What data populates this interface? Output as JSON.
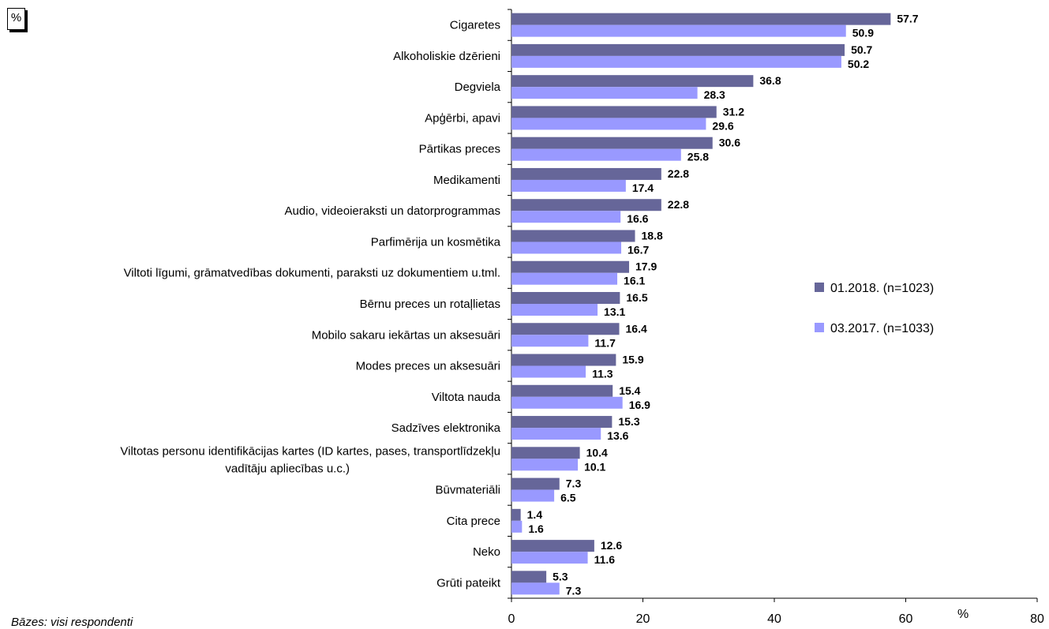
{
  "unit_box": "%",
  "footnote": "Bāzes: visi respondenti",
  "axis_unit": "%",
  "colors": {
    "series1": "#666699",
    "series2": "#9999ff"
  },
  "chart_data": {
    "type": "bar",
    "orientation": "horizontal",
    "categories": [
      "Cigaretes",
      "Alkoholiskie dzērieni",
      "Degviela",
      "Apģērbi, apavi",
      "Pārtikas preces",
      "Medikamenti",
      "Audio, videoieraksti un datorprogrammas",
      "Parfimērija un kosmētika",
      "Viltoti līgumi, grāmatvedības dokumenti, paraksti uz dokumentiem u.tml.",
      "Bērnu preces un rotaļlietas",
      "Mobilo sakaru iekārtas un aksesuāri",
      "Modes preces un aksesuāri",
      "Viltota nauda",
      "Sadzīves elektronika",
      "Viltotas personu identifikācijas kartes (ID kartes, pases, transportlīdzekļu vadītāju apliecības u.c.)",
      "Būvmateriāli",
      "Cita prece",
      "Neko",
      "Grūti pateikt"
    ],
    "series": [
      {
        "name": "01.2018. (n=1023)",
        "values": [
          57.7,
          50.7,
          36.8,
          31.2,
          30.6,
          22.8,
          22.8,
          18.8,
          17.9,
          16.5,
          16.4,
          15.9,
          15.4,
          15.3,
          10.4,
          7.3,
          1.4,
          12.6,
          5.3
        ]
      },
      {
        "name": "03.2017. (n=1033)",
        "values": [
          50.9,
          50.2,
          28.3,
          29.6,
          25.8,
          17.4,
          16.6,
          16.7,
          16.1,
          13.1,
          11.7,
          11.3,
          16.9,
          13.6,
          10.1,
          6.5,
          1.6,
          11.6,
          7.3
        ]
      }
    ],
    "xlim": [
      0,
      80
    ],
    "xticks": [
      0,
      20,
      40,
      60,
      80
    ],
    "legend_position": "right",
    "grid": false
  }
}
